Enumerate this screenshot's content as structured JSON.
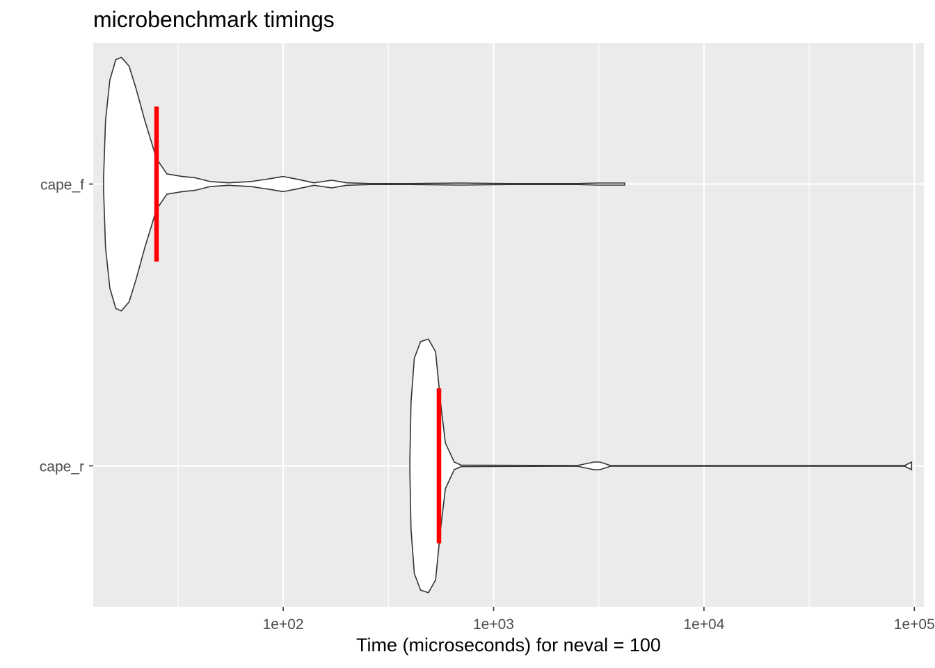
{
  "chart_data": {
    "type": "violin",
    "title": "microbenchmark timings",
    "xlabel": "Time (microseconds) for neval = 100",
    "ylabel": "",
    "x_scale": "log10",
    "xlim": [
      12.5,
      111000
    ],
    "x_ticks": [
      100,
      1000,
      10000,
      100000
    ],
    "x_tick_labels": [
      "1e+02",
      "1e+03",
      "1e+04",
      "1e+05"
    ],
    "categories": [
      "cape_f",
      "cape_r"
    ],
    "violins": [
      {
        "name": "cape_f",
        "median": 25,
        "min": 14,
        "max": 4200,
        "profile": [
          [
            14,
            0.05
          ],
          [
            14.3,
            0.5
          ],
          [
            15,
            0.82
          ],
          [
            16,
            0.98
          ],
          [
            17,
            1.0
          ],
          [
            18.5,
            0.93
          ],
          [
            20,
            0.75
          ],
          [
            22,
            0.5
          ],
          [
            25,
            0.2
          ],
          [
            28,
            0.08
          ],
          [
            33,
            0.06
          ],
          [
            38,
            0.05
          ],
          [
            45,
            0.02
          ],
          [
            55,
            0.01
          ],
          [
            70,
            0.02
          ],
          [
            85,
            0.04
          ],
          [
            100,
            0.06
          ],
          [
            115,
            0.04
          ],
          [
            140,
            0.01
          ],
          [
            170,
            0.03
          ],
          [
            200,
            0.01
          ],
          [
            260,
            0.004
          ],
          [
            400,
            0.004
          ],
          [
            700,
            0.008
          ],
          [
            900,
            0.006
          ],
          [
            1200,
            0.004
          ],
          [
            2500,
            0.004
          ],
          [
            3100,
            0.008
          ],
          [
            4200,
            0.008
          ]
        ]
      },
      {
        "name": "cape_r",
        "median": 550,
        "min": 400,
        "max": 97000,
        "profile": [
          [
            400,
            0.05
          ],
          [
            405,
            0.5
          ],
          [
            420,
            0.85
          ],
          [
            450,
            0.98
          ],
          [
            490,
            1.0
          ],
          [
            530,
            0.9
          ],
          [
            560,
            0.5
          ],
          [
            590,
            0.18
          ],
          [
            650,
            0.03
          ],
          [
            700,
            0.006
          ],
          [
            2500,
            0.003
          ],
          [
            3000,
            0.03
          ],
          [
            3200,
            0.03
          ],
          [
            3600,
            0.003
          ],
          [
            90000,
            0.003
          ],
          [
            97000,
            0.03
          ]
        ]
      }
    ],
    "median_color": "#ff0000",
    "panel_background": "#ebebeb",
    "grid": true,
    "legend": "none"
  }
}
